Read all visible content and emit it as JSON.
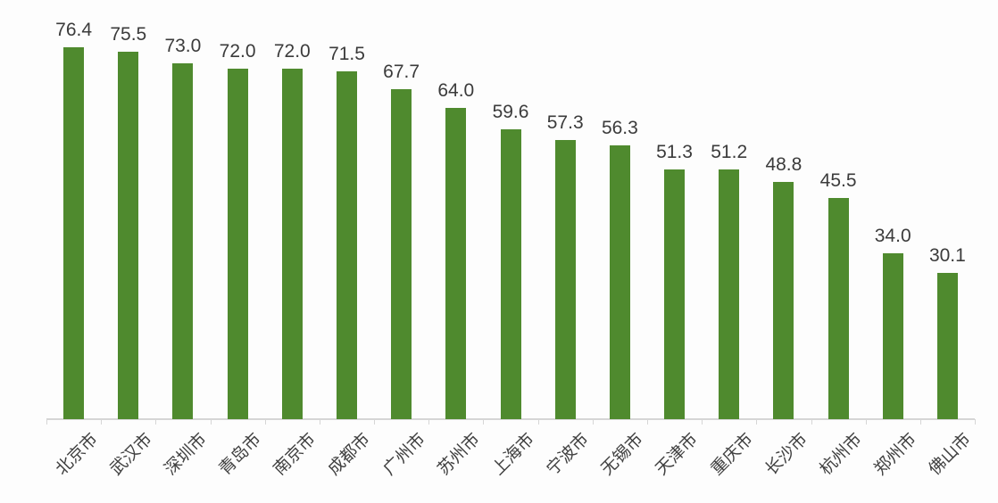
{
  "chart_data": {
    "type": "bar",
    "title": "",
    "xlabel": "",
    "ylabel": "",
    "categories": [
      "北京市",
      "武汉市",
      "深圳市",
      "青岛市",
      "南京市",
      "成都市",
      "广州市",
      "苏州市",
      "上海市",
      "宁波市",
      "无锡市",
      "天津市",
      "重庆市",
      "长沙市",
      "杭州市",
      "郑州市",
      "佛山市"
    ],
    "values": [
      76.4,
      75.5,
      73.0,
      72.0,
      72.0,
      71.5,
      67.7,
      64.0,
      59.6,
      57.3,
      56.3,
      51.3,
      51.2,
      48.8,
      45.5,
      34.0,
      30.1
    ],
    "ylim": [
      0,
      80
    ],
    "grid": false,
    "legend": null,
    "data_labels": true,
    "value_label_decimals": 1,
    "x_tick_rotation": -45,
    "bar_color": "#4f8a2e",
    "value_label_color": "#3b3b3b",
    "x_label_color": "#404040",
    "axis_color": "#d6d6d6",
    "background_color": "#fdfdfd"
  }
}
